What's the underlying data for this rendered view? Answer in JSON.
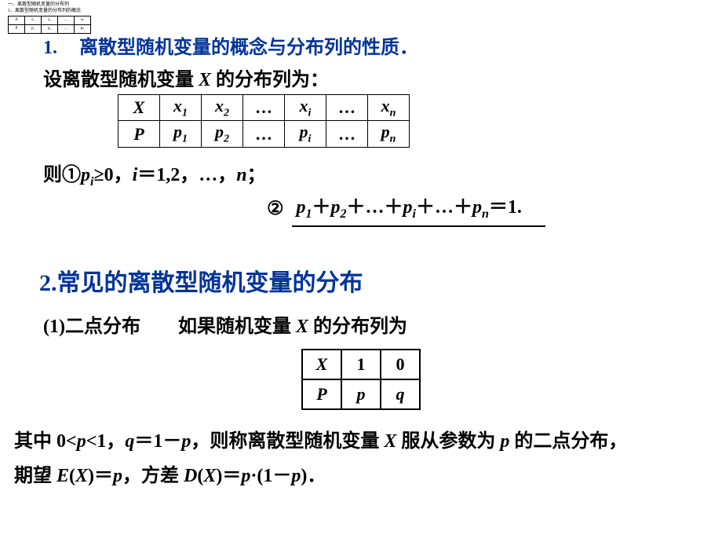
{
  "tiny": {
    "line1": "一、离散型随机变量的分布列",
    "line2": "1．离散型随机变量的分布列的概念",
    "t": [
      [
        "X",
        "x₁",
        "x₂",
        "…",
        "xₙ"
      ],
      [
        "P",
        "p₁",
        "p₂",
        "…",
        "pₙ"
      ]
    ]
  },
  "sec1": {
    "num": "1.",
    "title": "离散型随机变量的概念与分布列的性质．",
    "intro_pre": "设离散型随机变量 ",
    "intro_X": "X",
    "intro_post": " 的分布列为：",
    "table": {
      "row1": [
        "X",
        "x",
        "x",
        "…",
        "x",
        "…",
        "x"
      ],
      "row1_sub": [
        "",
        "1",
        "2",
        "",
        "i",
        "",
        "n"
      ],
      "row2": [
        "P",
        "p",
        "p",
        "…",
        "p",
        "…",
        "p"
      ],
      "row2_sub": [
        "",
        "1",
        "2",
        "",
        "i",
        "",
        "n"
      ]
    },
    "rule1_a": "则①",
    "rule1_b": "p",
    "rule1_b_sub": "i",
    "rule1_c": "≥0，",
    "rule1_d": "i",
    "rule1_e": "＝1,2，…，",
    "rule1_f": "n",
    "rule1_g": "；",
    "rule2_circ": "②",
    "rule2_parts": [
      "p",
      "1",
      "＋",
      "p",
      "2",
      "＋…＋",
      "p",
      "i",
      "＋…＋",
      "p",
      "n",
      "＝1."
    ]
  },
  "sec2": {
    "title": "2.常见的离散型随机变量的分布",
    "sub_a": "(1)二点分布",
    "sub_gap": "　　",
    "sub_b": "如果随机变量 ",
    "sub_X": "X",
    "sub_c": " 的分布列为",
    "table": {
      "r1": [
        "X",
        "1",
        "0"
      ],
      "r2": [
        "P",
        "p",
        "q"
      ]
    },
    "desc_parts": {
      "a": "其中 0<",
      "p1": "p",
      "b": "<1，",
      "q": "q",
      "c": "＝1－",
      "p2": "p",
      "d": "，则称离散型随机变量 ",
      "X": "X",
      "e": " 服从参数为 ",
      "p3": "p",
      "f": " 的二点分布，",
      "g": "期望 ",
      "EX": "E",
      "lp1": "(",
      "X2": "X",
      "rp1": ")",
      "eq1": "＝",
      "p4": "p",
      "h": "，方差 ",
      "DX": "D",
      "lp2": "(",
      "X3": "X",
      "rp2": ")",
      "eq2": "＝",
      "p5": "p",
      "dot": "·(1－",
      "p6": "p",
      "end": ")．"
    }
  },
  "colors": {
    "heading": "#003399",
    "text": "#000000",
    "bg": "#ffffff"
  }
}
